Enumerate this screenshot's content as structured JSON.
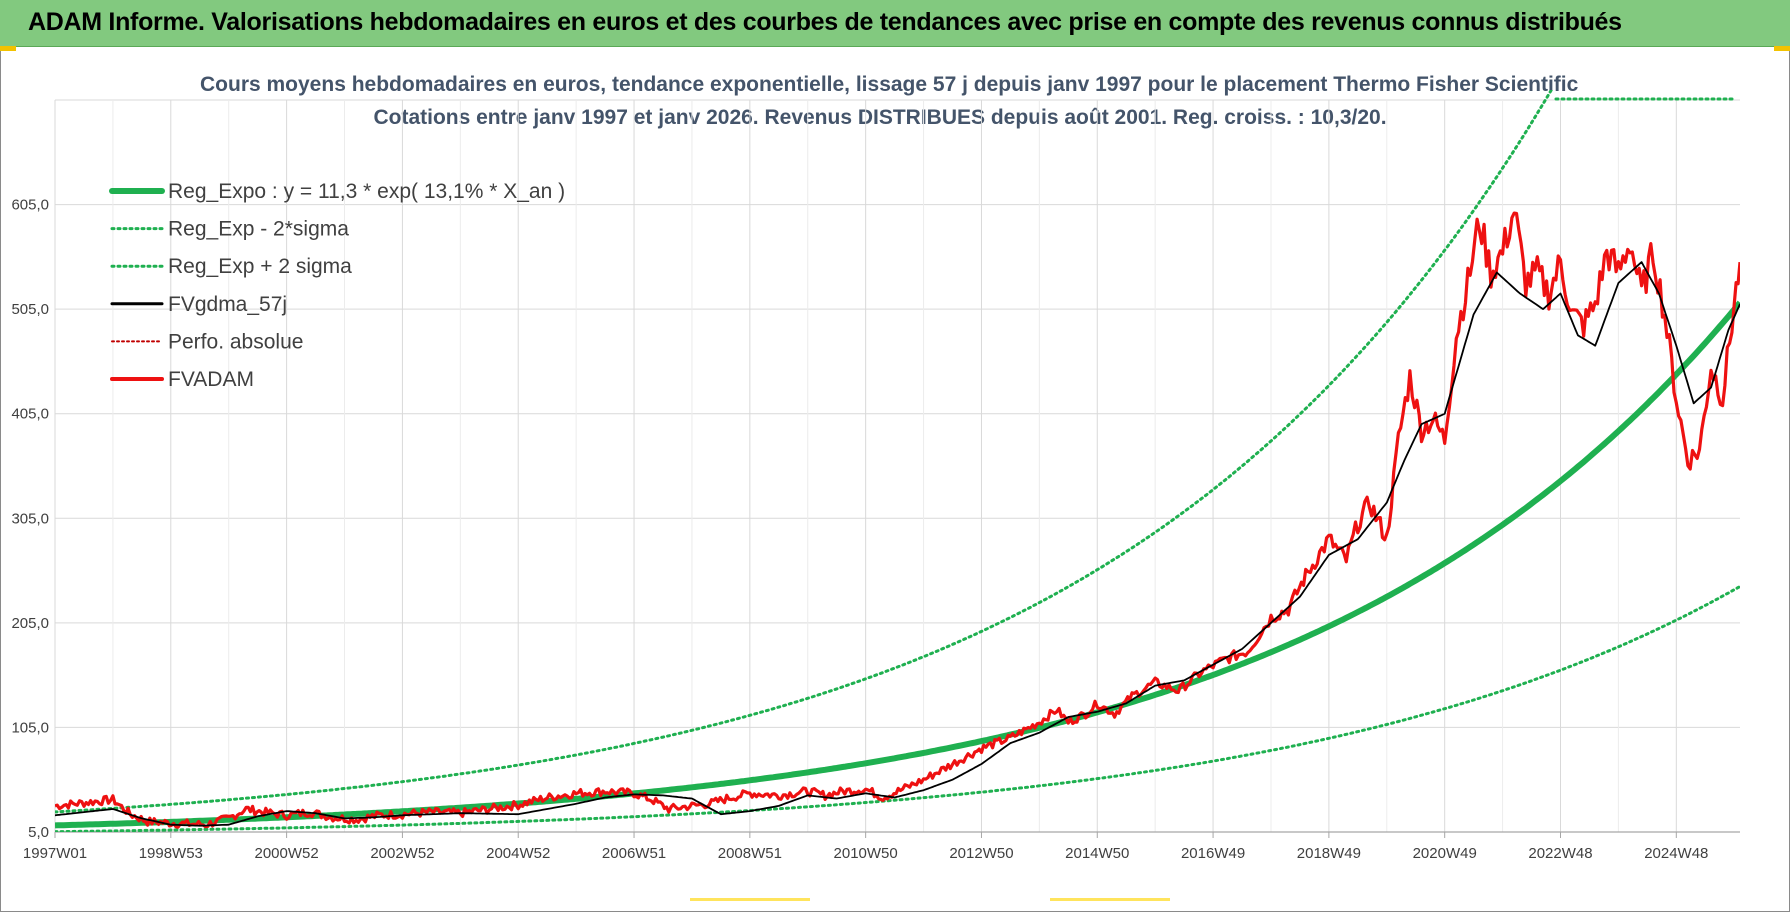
{
  "banner": {
    "title": "ADAM Informe. Valorisations hebdomadaires en euros et des courbes de tendances avec prise en compte des revenus connus distribués"
  },
  "chart_data": {
    "type": "line",
    "title_line1": "Cours moyens hebdomadaires en euros, tendance exponentielle, lissage 57 j depuis janv 1997 pour le placement Thermo Fisher Scientific",
    "title_line2": "Cotations entre janv 1997 et janv 2026. Revenus DISTRIBUES depuis août 2001. Reg. croiss. : 10,3/20.",
    "xlabel": "",
    "ylabel": "",
    "ylim": [
      5.0,
      705.0
    ],
    "xlim": [
      1997.0,
      2026.1
    ],
    "y_ticks": [
      "5,0",
      "105,0",
      "205,0",
      "305,0",
      "405,0",
      "505,0",
      "605,0"
    ],
    "x_ticks": [
      "1997W01",
      "1998W53",
      "2000W52",
      "2002W52",
      "2004W52",
      "2006W51",
      "2008W51",
      "2010W50",
      "2012W50",
      "2014W50",
      "2016W49",
      "2018W49",
      "2020W49",
      "2022W48",
      "2024W48"
    ],
    "regression": {
      "a": 11.3,
      "b": 0.131,
      "label_formula": "y = 11,3 * exp( 13,1% *  X_an )"
    },
    "series": [
      {
        "name": "Reg_Expo : y = 11,3 * exp( 13,1% *  X_an )",
        "style": "thick-solid",
        "color": "#1fb050",
        "formula": "11.3*exp(0.131*t)"
      },
      {
        "name": "Reg_Exp - 2*sigma",
        "style": "dotted",
        "color": "#1fb050",
        "formula": "5.3*exp(0.131*t)"
      },
      {
        "name": "Reg_Exp + 2 sigma",
        "style": "dotted",
        "color": "#1fb050",
        "formula": "24.2*exp(0.131*t)"
      },
      {
        "name": "FVgdma_57j",
        "style": "solid",
        "color": "#000000",
        "x": [
          1997.0,
          1998.0,
          1998.5,
          1999.0,
          1999.5,
          2000.0,
          2000.5,
          2001.0,
          2001.5,
          2002.0,
          2002.5,
          2003.0,
          2004.0,
          2005.0,
          2006.0,
          2006.5,
          2007.0,
          2007.5,
          2008.0,
          2008.5,
          2009.0,
          2009.5,
          2010.0,
          2010.5,
          2011.0,
          2011.5,
          2012.0,
          2012.5,
          2013.0,
          2013.5,
          2014.0,
          2014.5,
          2015.0,
          2015.5,
          2016.0,
          2016.5,
          2017.0,
          2017.5,
          2018.0,
          2018.5,
          2019.0,
          2019.5,
          2020.0,
          2020.3,
          2020.6,
          2021.0,
          2021.5,
          2021.9,
          2022.3,
          2022.7,
          2023.0,
          2023.3,
          2023.6,
          2024.0,
          2024.4,
          2024.7,
          2025.0,
          2025.3,
          2025.6,
          2025.9,
          2026.1
        ],
        "values": [
          21,
          27,
          18,
          12,
          11,
          12,
          20,
          25,
          23,
          18,
          19,
          21,
          23,
          22,
          32,
          38,
          41,
          40,
          37,
          22,
          25,
          30,
          40,
          37,
          42,
          38,
          45,
          55,
          70,
          90,
          100,
          115,
          120,
          128,
          145,
          150,
          165,
          180,
          205,
          230,
          270,
          285,
          320,
          360,
          395,
          405,
          500,
          540,
          520,
          505,
          520,
          480,
          470,
          530,
          550,
          520,
          470,
          415,
          430,
          485,
          510
        ]
      },
      {
        "name": "Perfo. absolue",
        "style": "dotted",
        "color": "#c00000"
      },
      {
        "name": "FVADAM",
        "style": "thick-solid",
        "color": "#ee1111",
        "x": [
          1997.0,
          1997.5,
          1998.0,
          1998.3,
          1998.6,
          1998.9,
          1999.2,
          1999.6,
          2000.0,
          2000.3,
          2000.6,
          2001.0,
          2001.4,
          2001.8,
          2002.2,
          2002.6,
          2003.0,
          2003.5,
          2004.0,
          2004.5,
          2005.0,
          2005.5,
          2006.0,
          2006.5,
          2007.0,
          2007.3,
          2007.6,
          2008.0,
          2008.3,
          2008.6,
          2009.0,
          2009.5,
          2010.0,
          2010.3,
          2010.6,
          2011.0,
          2011.3,
          2011.6,
          2012.0,
          2012.5,
          2013.0,
          2013.5,
          2014.0,
          2014.3,
          2014.5,
          2014.8,
          2015.0,
          2015.3,
          2015.6,
          2016.0,
          2016.4,
          2016.8,
          2017.2,
          2017.6,
          2018.0,
          2018.3,
          2018.6,
          2019.0,
          2019.3,
          2019.5,
          2019.7,
          2020.0,
          2020.2,
          2020.4,
          2020.6,
          2020.8,
          2021.0,
          2021.2,
          2021.4,
          2021.6,
          2021.8,
          2022.0,
          2022.2,
          2022.4,
          2022.6,
          2022.8,
          2023.0,
          2023.2,
          2023.4,
          2023.6,
          2023.8,
          2024.0,
          2024.2,
          2024.4,
          2024.6,
          2024.8,
          2025.0,
          2025.2,
          2025.4,
          2025.6,
          2025.8,
          2026.0,
          2026.1
        ],
        "values": [
          30,
          33,
          36,
          22,
          15,
          14,
          13,
          12,
          18,
          27,
          24,
          21,
          24,
          19,
          17,
          21,
          22,
          24,
          23,
          27,
          31,
          38,
          42,
          44,
          42,
          36,
          27,
          30,
          32,
          37,
          42,
          40,
          44,
          40,
          44,
          46,
          38,
          45,
          55,
          70,
          85,
          95,
          110,
          122,
          110,
          118,
          128,
          118,
          135,
          148,
          140,
          158,
          170,
          178,
          210,
          218,
          250,
          285,
          265,
          300,
          320,
          285,
          380,
          440,
          390,
          400,
          380,
          480,
          530,
          590,
          540,
          560,
          600,
          530,
          540,
          520,
          550,
          500,
          490,
          510,
          560,
          540,
          570,
          520,
          560,
          500,
          420,
          360,
          370,
          450,
          420,
          510,
          550
        ]
      }
    ]
  }
}
